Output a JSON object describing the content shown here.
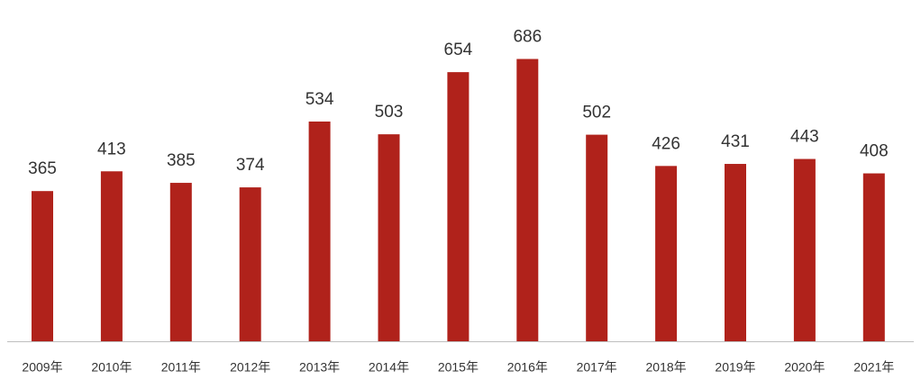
{
  "chart_data": {
    "type": "bar",
    "categories": [
      "2009年",
      "2010年",
      "2011年",
      "2012年",
      "2013年",
      "2014年",
      "2015年",
      "2016年",
      "2017年",
      "2018年",
      "2019年",
      "2020年",
      "2021年"
    ],
    "values": [
      365,
      413,
      385,
      374,
      534,
      503,
      654,
      686,
      502,
      426,
      431,
      443,
      408
    ],
    "color": "#b0221b"
  }
}
